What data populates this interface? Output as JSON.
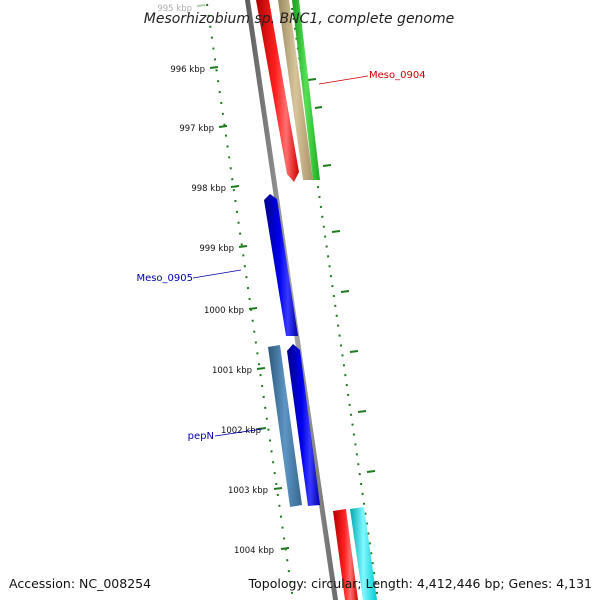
{
  "title": "Mesorhizobium sp. BNC1, complete genome",
  "ticks": [
    {
      "label": "995 kbp",
      "faded": true
    },
    {
      "label": "996 kbp"
    },
    {
      "label": "997 kbp"
    },
    {
      "label": "998 kbp"
    },
    {
      "label": "999 kbp"
    },
    {
      "label": "1000 kbp"
    },
    {
      "label": "1001 kbp"
    },
    {
      "label": "1002 kbp"
    },
    {
      "label": "1003 kbp"
    },
    {
      "label": "1004 kbp"
    }
  ],
  "gene_labels": [
    {
      "text": "Meso_0904",
      "color": "#cc0000"
    },
    {
      "text": "Meso_0905",
      "color": "#0000aa"
    },
    {
      "text": "pepN",
      "color": "#0000aa"
    }
  ],
  "feature_colors": {
    "backbone": "#808080",
    "red": "#ff0000",
    "tan": "#c8b488",
    "green": "#33cc33",
    "blue": "#0000ee",
    "steelblue": "#4682b4",
    "cyan": "#00e5ee",
    "tick_green": "#1f7a1f"
  },
  "footer": {
    "accession": "Accession: NC_008254",
    "summary": "Topology: circular; Length: 4,412,446 bp; Genes: 4,131"
  }
}
